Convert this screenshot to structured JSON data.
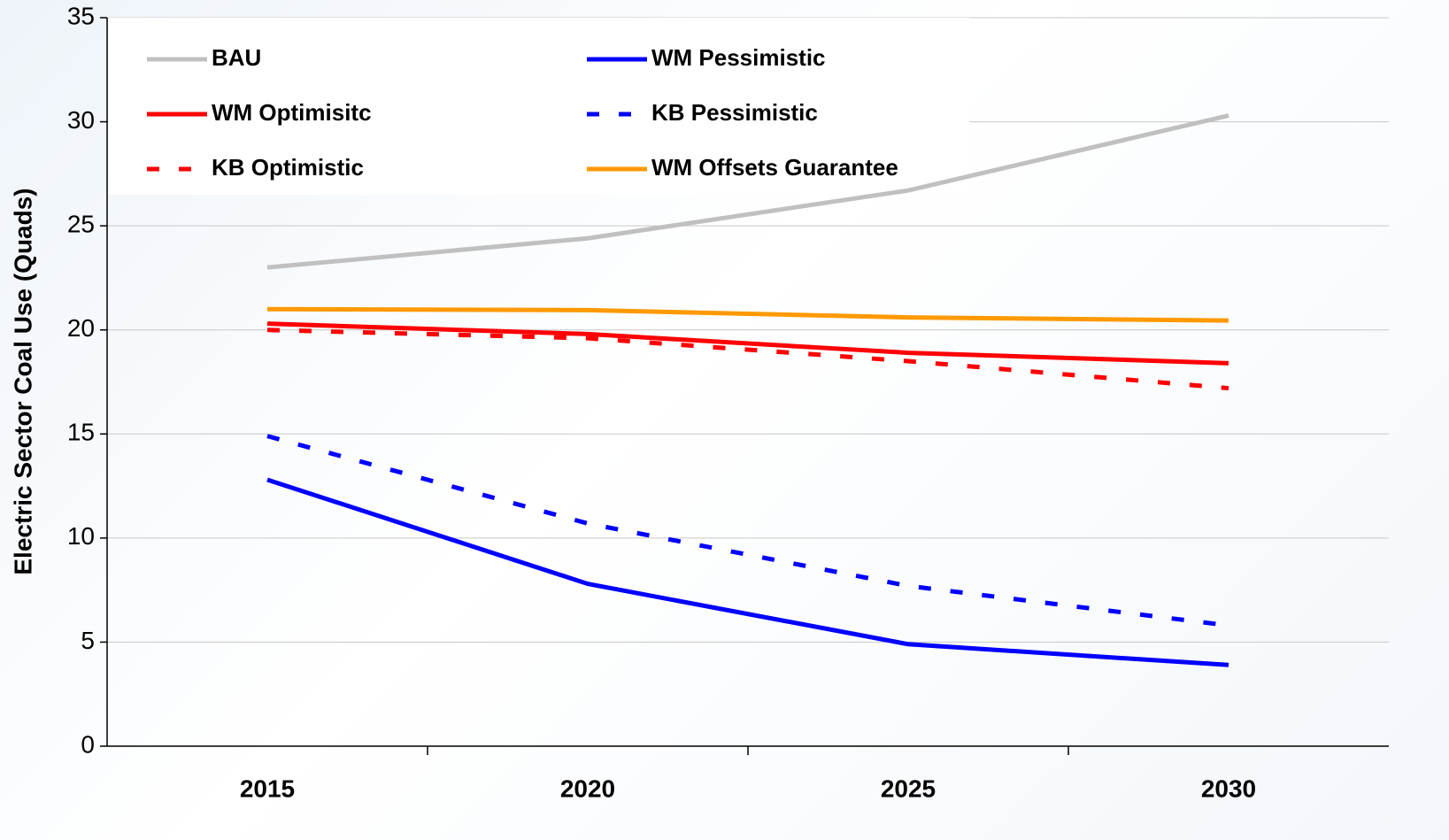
{
  "chart_data": {
    "type": "line",
    "y_label": "Electric Sector Coal Use (Quads)",
    "categories": [
      "2015",
      "2020",
      "2025",
      "2030"
    ],
    "series": [
      {
        "name": "BAU",
        "color": "#c0c0c0",
        "style": "solid",
        "values": [
          23.0,
          24.4,
          26.7,
          30.3
        ]
      },
      {
        "name": "WM Pessimistic",
        "color": "#0000ff",
        "style": "solid",
        "values": [
          12.8,
          7.8,
          4.9,
          3.9
        ]
      },
      {
        "name": "WM Optimisitc",
        "color": "#ff0000",
        "style": "solid",
        "values": [
          20.3,
          19.8,
          18.9,
          18.4
        ]
      },
      {
        "name": "KB Pessimistic",
        "color": "#0000ff",
        "style": "dashed",
        "values": [
          14.9,
          10.7,
          7.7,
          5.8
        ]
      },
      {
        "name": "KB Optimistic",
        "color": "#ff0000",
        "style": "dashed",
        "values": [
          20.0,
          19.6,
          18.5,
          17.2
        ]
      },
      {
        "name": "WM Offsets Guarantee",
        "color": "#ff9900",
        "style": "solid",
        "values": [
          21.0,
          20.95,
          20.6,
          20.45
        ]
      }
    ],
    "ylim": [
      0,
      35
    ],
    "yticks": [
      0,
      5,
      10,
      15,
      20,
      25,
      30,
      35
    ],
    "grid": true,
    "legend": "upper left"
  }
}
